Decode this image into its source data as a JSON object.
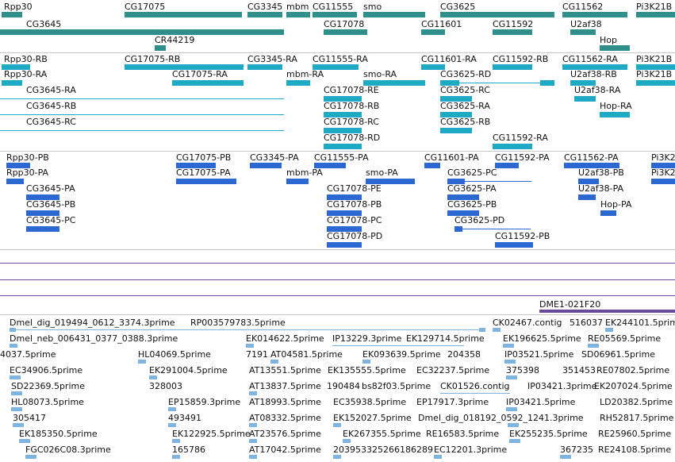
{
  "colors": {
    "gene": "#2f8f8a",
    "transcript": "#1eaac4",
    "protein": "#2d67d2",
    "est": "#7fb4e0",
    "clone": "#6a4a9c"
  },
  "gene_track": {
    "rows": [
      [
        {
          "label": "Rpp30"
        },
        {
          "label": "CG17075"
        },
        {
          "label": "CG3345"
        },
        {
          "label": "mbm"
        },
        {
          "label": "CG11555"
        },
        {
          "label": "smo"
        },
        {
          "label": "CG3625"
        },
        {
          "label": "CG11562"
        },
        {
          "label": "Pi3K21B"
        }
      ],
      [
        {
          "label": "CG3645"
        },
        {
          "label": "CG17078"
        },
        {
          "label": "CG11601"
        },
        {
          "label": "CG11592"
        },
        {
          "label": "U2af38"
        }
      ],
      [
        {
          "label": "CR44219"
        },
        {
          "label": "Hop"
        }
      ]
    ]
  },
  "transcript_track": {
    "labels": [
      "Rpp30-RB",
      "CG17075-RB",
      "CG3345-RA",
      "CG11555-RA",
      "CG11601-RA",
      "CG11592-RB",
      "CG11562-RA",
      "Pi3K21B",
      "Rpp30-RA",
      "CG17075-RA",
      "mbm-RA",
      "smo-RA",
      "CG3625-RD",
      "U2af38-RB",
      "Pi3K21B",
      "CG3645-RA",
      "CG17078-RE",
      "CG3625-RC",
      "U2af38-RA",
      "CG3645-RB",
      "CG17078-RB",
      "CG3625-RA",
      "Hop-RA",
      "CG3645-RC",
      "CG17078-RC",
      "CG3625-RB",
      "CG17078-RD",
      "CG11592-RA"
    ]
  },
  "protein_track": {
    "labels": [
      "Rpp30-PB",
      "CG17075-PB",
      "CG3345-PA",
      "CG11555-PA",
      "CG11601-PA",
      "CG11592-PA",
      "CG11562-PA",
      "Pi3K2",
      "Rpp30-PA",
      "CG17075-PA",
      "mbm-PA",
      "smo-PA",
      "CG3625-PC",
      "U2af38-PB",
      "Pi3K2",
      "CG3645-PA",
      "CG17078-PE",
      "CG3625-PA",
      "U2af38-PA",
      "CG3645-PB",
      "CG17078-PB",
      "CG3625-PB",
      "Hop-PA",
      "CG3645-PC",
      "CG17078-PC",
      "CG3625-PD",
      "CG17078-PD",
      "CG11592-PB"
    ]
  },
  "clone_track": {
    "label": "DME1-021F20"
  },
  "est_track": {
    "labels": [
      "Dmel_dig_019494_0612_3374.3prime",
      "RP003579783.5prime",
      "CK02467.contig",
      "516037",
      "EK244101.5prime",
      "Dmel_neb_006431_0377_0388.3prime",
      "EK014622.5prime",
      "IP13229.3prime",
      "EK129714.5prime",
      "EK196625.5prime",
      "RE05569.5prime",
      "4037.5prime",
      "HL04069.5prime",
      "7191",
      "AT04581.5prime",
      "EK093639.5prime",
      "204358",
      "IP03521.5prime",
      "SD06961.5prime",
      "EC34906.5prime",
      "EK291004.5prime",
      "AT13551.5prime",
      "EK135555.5prime",
      "EC32237.5prime",
      "375398",
      "351453",
      "RE07802.5prime",
      "SD22369.5prime",
      "328003",
      "AT13837.5prime",
      "190484",
      "bs82f03.5prime",
      "CK01526.contig",
      "IP03421.3prime",
      "EK207024.5prime",
      "HL08073.5prime",
      "EP15859.3prime",
      "AT18993.5prime",
      "EC35938.5prime",
      "EP17917.3prime",
      "IP03421.5prime",
      "LD20382.5prime",
      "305417",
      "493491",
      "AT08332.5prime",
      "EK152027.5prime",
      "Dmel_dig_018192_0592_1241.3prime",
      "RH52817.5prime",
      "EK185350.5prime",
      "EK122925.5prime",
      "AT23576.5prime",
      "EK267355.5prime",
      "RE16583.5prime",
      "EK255235.5prime",
      "RE25960.5prime",
      "FGC026C08.3prime",
      "165786",
      "AT17042.5prime",
      "203953",
      "325266",
      "186289",
      "EC12201.3prime",
      "367235",
      "RE24108.5prime"
    ]
  }
}
